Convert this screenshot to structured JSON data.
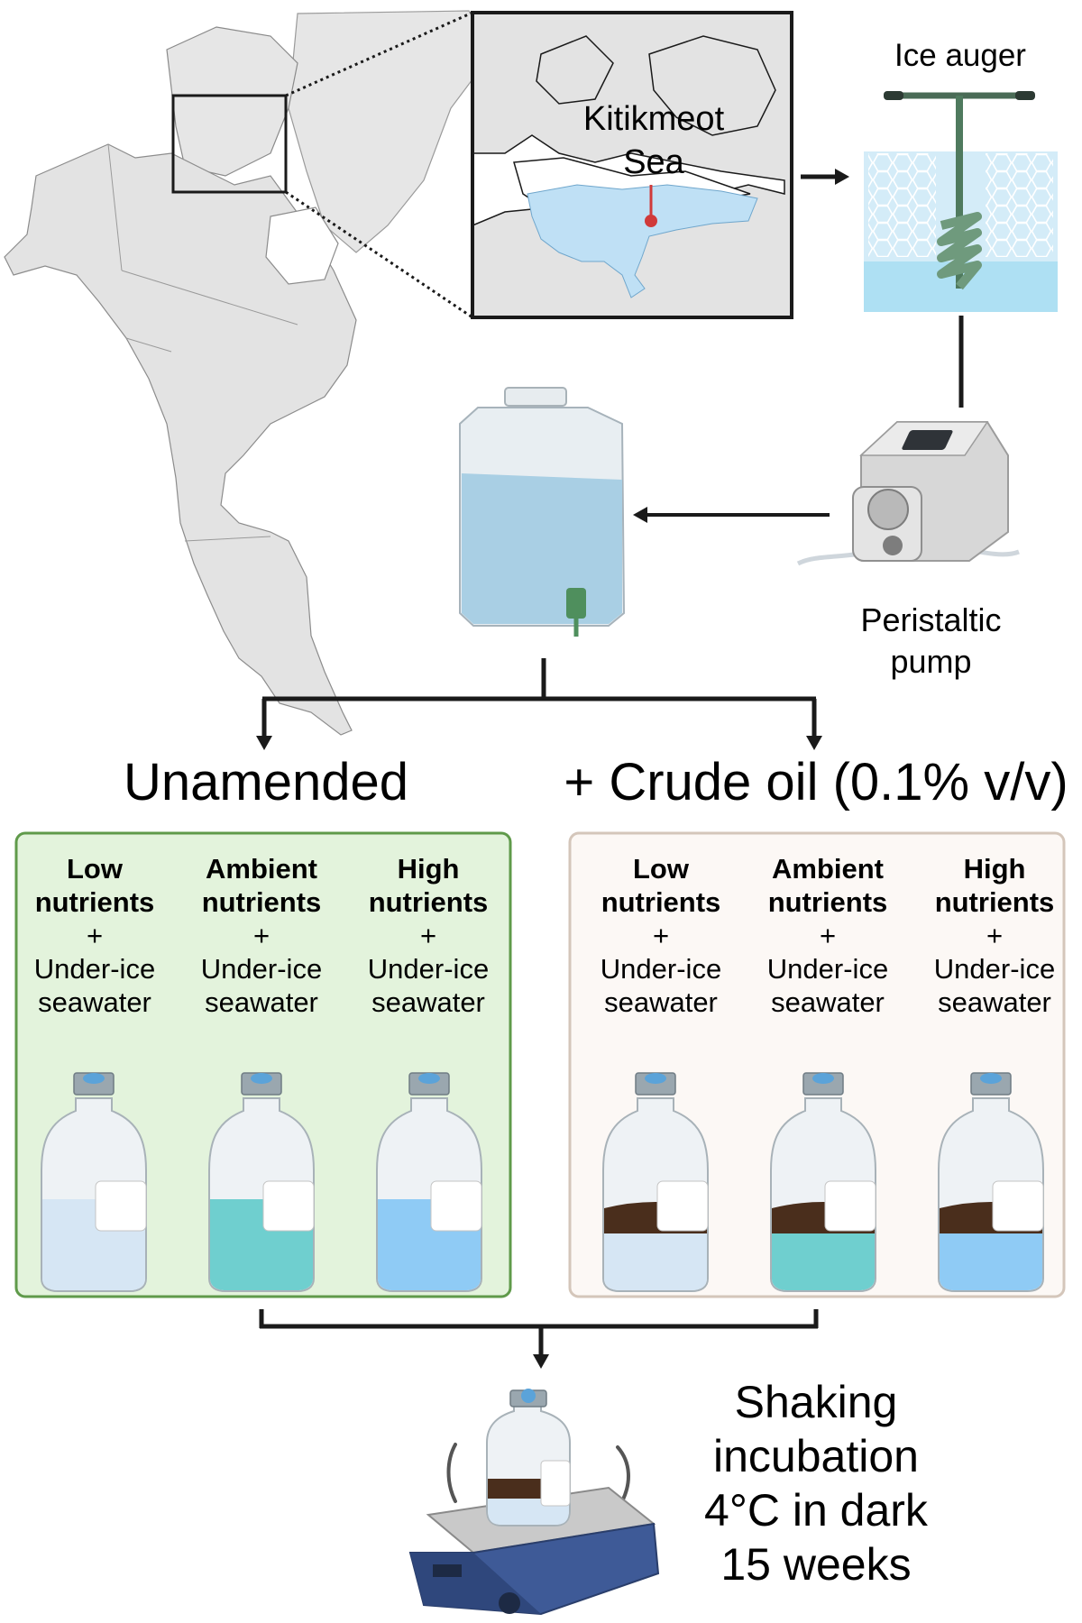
{
  "map": {
    "region_label_line1": "Kitikmeot",
    "region_label_line2": "Sea"
  },
  "sampling": {
    "auger_label": "Ice auger",
    "pump_label_line1": "Peristaltic",
    "pump_label_line2": "pump"
  },
  "treatments": {
    "unamended_title": "Unamended",
    "oil_title": "+ Crude oil (0.1% v/v)",
    "conditions": [
      {
        "name_line1": "Low",
        "name_line2": "nutrients",
        "plus": "+",
        "water_line1": "Under-ice",
        "water_line2": "seawater"
      },
      {
        "name_line1": "Ambient",
        "name_line2": "nutrients",
        "plus": "+",
        "water_line1": "Under-ice",
        "water_line2": "seawater"
      },
      {
        "name_line1": "High",
        "name_line2": "nutrients",
        "plus": "+",
        "water_line1": "Under-ice",
        "water_line2": "seawater"
      }
    ]
  },
  "incubation": {
    "line1": "Shaking",
    "line2": "incubation",
    "line3": "4°C in dark",
    "line4": "15 weeks"
  },
  "colors": {
    "unamended_panel_fill": "#e3f3dc",
    "unamended_panel_border": "#5f9a4a",
    "oil_panel_fill": "#fcf8f5",
    "oil_panel_border": "#d4c6ba",
    "sea_blue": "#bfe0f5",
    "low_water": "#d6e6f4",
    "ambient_water": "#6fcfcf",
    "high_water": "#8fcbf5",
    "crude_oil": "#4a2e1c",
    "marker_red": "#d03a3a"
  }
}
